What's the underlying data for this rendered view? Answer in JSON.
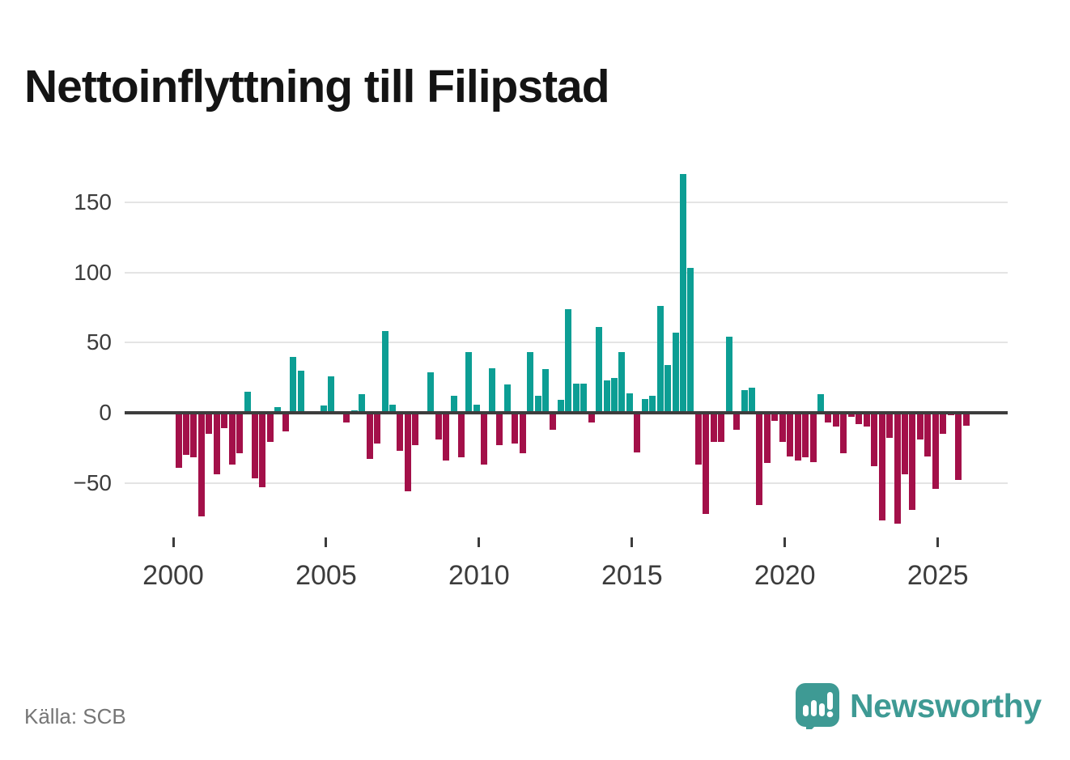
{
  "title": "Nettoinflyttning till Filipstad",
  "source": "Källa: SCB",
  "brand": {
    "name": "Newsworthy",
    "logo_icon": "bar-chart-speech-bubble"
  },
  "colors": {
    "positive_bar": "#0c9e94",
    "negative_bar": "#a31049",
    "zero_line": "#3d3d3d",
    "grid_line": "#e4e4e4",
    "axis_label": "#3c3c3c",
    "title_text": "#141414",
    "source_text": "#767676",
    "brand_teal": "#3e9a94",
    "background": "#ffffff"
  },
  "chart_data": {
    "type": "bar",
    "title": "Nettoinflyttning till Filipstad",
    "xlabel": "",
    "ylabel": "",
    "frequency": "quarterly",
    "start_year": 2000,
    "start_quarter": 1,
    "end_year": 2025,
    "end_quarter": 4,
    "ylim": [
      -90,
      185
    ],
    "grid": true,
    "legend": "none",
    "y_ticks": [
      150,
      100,
      50,
      0,
      -50
    ],
    "y_tick_labels": [
      "150",
      "100",
      "50",
      "0",
      "−50"
    ],
    "x_tick_years": [
      2000,
      2005,
      2010,
      2015,
      2020,
      2025
    ],
    "x_tick_labels": [
      "2000",
      "2005",
      "2010",
      "2015",
      "2020",
      "2025"
    ],
    "values": [
      -39,
      -30,
      -32,
      -74,
      -15,
      -44,
      -11,
      -37,
      -29,
      15,
      -47,
      -53,
      -21,
      4,
      -13,
      40,
      30,
      0,
      0,
      5,
      26,
      0,
      -7,
      2,
      13,
      -33,
      -22,
      58,
      6,
      -27,
      -56,
      -23,
      0,
      29,
      -19,
      -34,
      12,
      -32,
      43,
      6,
      -37,
      32,
      -23,
      20,
      -22,
      -29,
      43,
      12,
      31,
      -12,
      9,
      74,
      21,
      21,
      -7,
      61,
      23,
      25,
      43,
      14,
      -28,
      10,
      12,
      76,
      34,
      57,
      170,
      103,
      -37,
      -72,
      -21,
      -21,
      54,
      -12,
      16,
      18,
      -66,
      -36,
      -6,
      -21,
      -31,
      -34,
      -32,
      -35,
      13,
      -7,
      -10,
      -29,
      -3,
      -8,
      -10,
      -38,
      -77,
      -18,
      -79,
      -44,
      -69,
      -19,
      -31,
      -54,
      -15,
      -2,
      -48,
      -9
    ]
  }
}
